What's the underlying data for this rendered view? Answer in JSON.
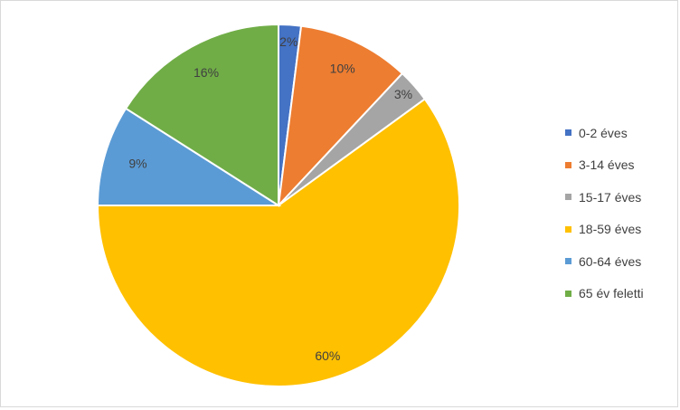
{
  "chart_data": {
    "type": "pie",
    "categories": [
      "0-2 éves",
      "3-14 éves",
      "15-17 éves",
      "18-59 éves",
      "60-64 éves",
      "65 év feletti"
    ],
    "values": [
      2,
      10,
      3,
      60,
      9,
      16
    ],
    "data_labels": [
      "2%",
      "10%",
      "3%",
      "60%",
      "9%",
      "16%"
    ],
    "colors": [
      "#4472C4",
      "#ED7D31",
      "#A5A5A5",
      "#FFC000",
      "#5B9BD5",
      "#70AD47"
    ],
    "legend_position": "right",
    "title": ""
  }
}
